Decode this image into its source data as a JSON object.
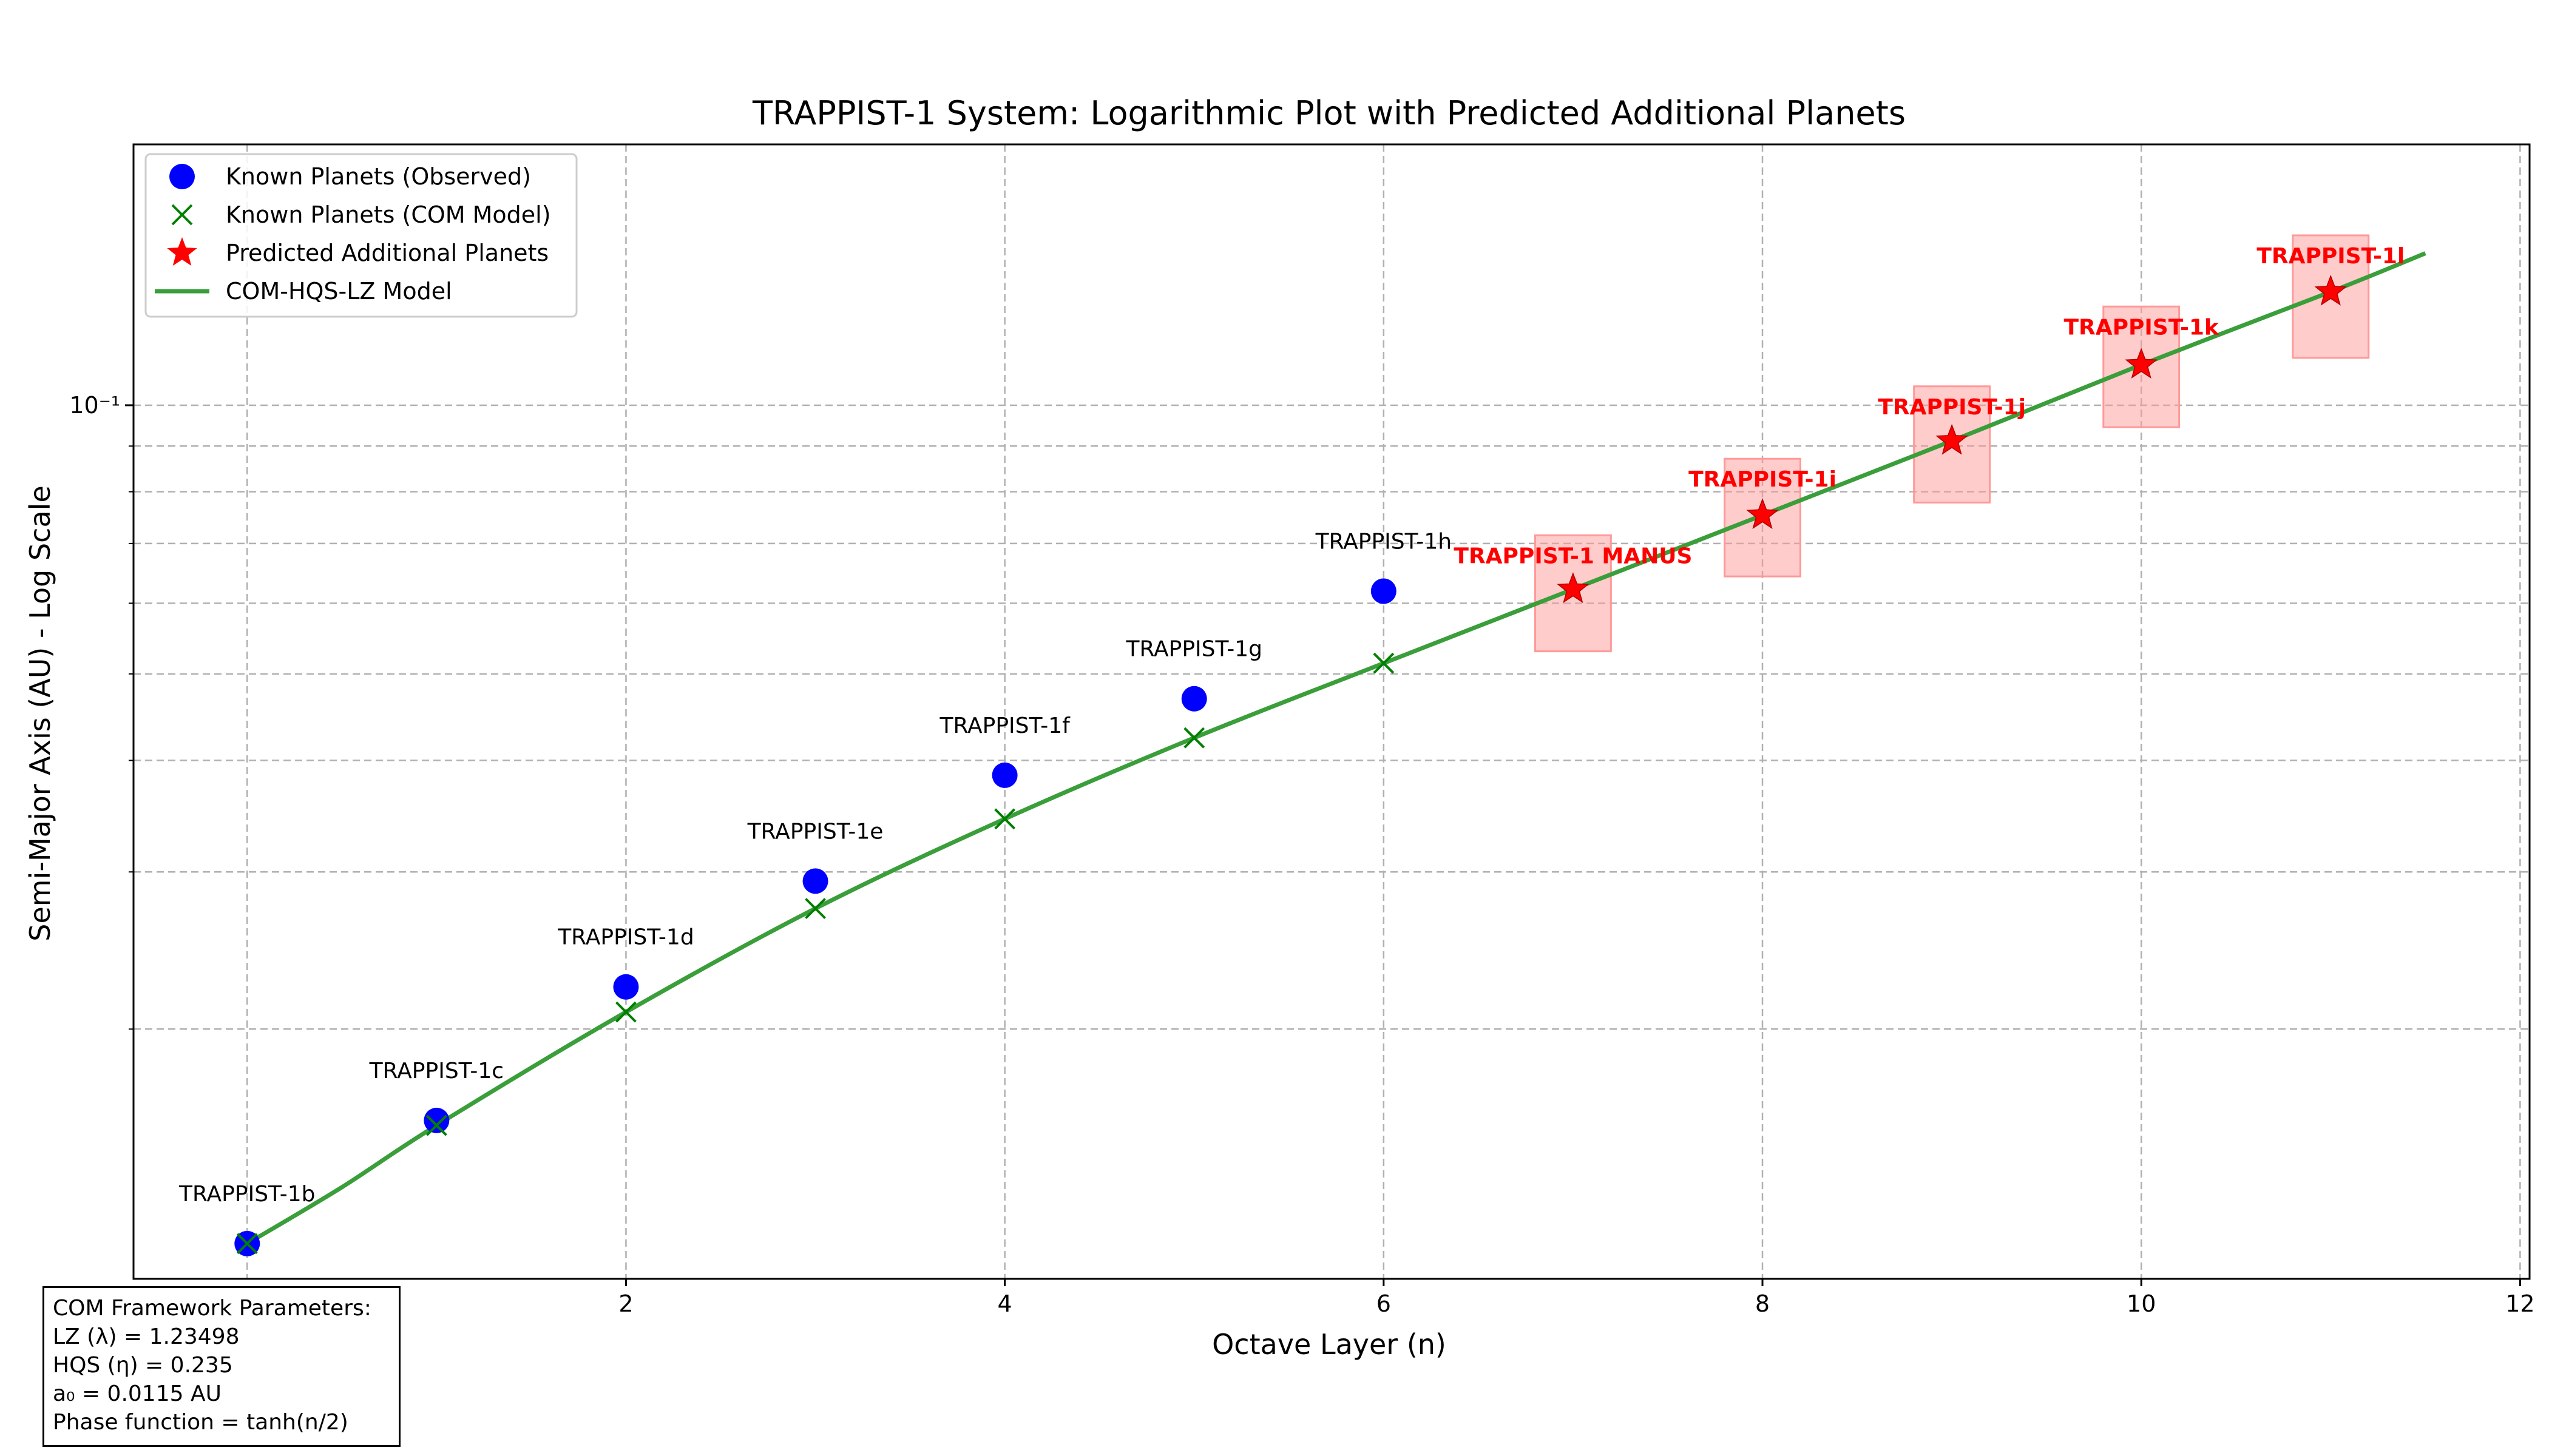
{
  "chart_data": {
    "type": "scatter",
    "title": "TRAPPIST-1 System: Logarithmic Plot with Predicted Additional Planets",
    "xlabel": "Octave Layer (n)",
    "ylabel": "Semi-Major Axis (AU) - Log Scale",
    "xscale": "linear",
    "yscale": "log",
    "xlim": [
      -0.6,
      12.05
    ],
    "ylim": [
      0.0105,
      0.196
    ],
    "xticks": [
      2,
      4,
      6,
      8,
      10,
      12
    ],
    "xtick_labels": [
      "2",
      "4",
      "6",
      "8",
      "10",
      "12"
    ],
    "yticks_major": [
      0.1
    ],
    "ytick_labels": [
      "10⁻¹"
    ],
    "yticks_minor": [
      0.02,
      0.03,
      0.04,
      0.05,
      0.06,
      0.07,
      0.08,
      0.09
    ],
    "grid": true,
    "legend_position": "upper-left",
    "colors": {
      "observed": "#0000ff",
      "com_model": "#008000",
      "predicted": "#ff0000",
      "model_line": "#3a9e3a",
      "uncertainty_box": "#ff9999"
    },
    "legend": [
      {
        "label": "Known Planets (Observed)",
        "marker": "circle"
      },
      {
        "label": "Known Planets (COM Model)",
        "marker": "x"
      },
      {
        "label": "Predicted Additional Planets",
        "marker": "star"
      },
      {
        "label": "COM-HQS-LZ Model",
        "marker": "line"
      }
    ],
    "series": [
      {
        "name": "Known Planets (Observed)",
        "marker": "circle",
        "points": [
          {
            "x": 0,
            "y": 0.0115,
            "label": "TRAPPIST-1b"
          },
          {
            "x": 1,
            "y": 0.0158,
            "label": "TRAPPIST-1c"
          },
          {
            "x": 2,
            "y": 0.0223,
            "label": "TRAPPIST-1d"
          },
          {
            "x": 3,
            "y": 0.0293,
            "label": "TRAPPIST-1e"
          },
          {
            "x": 4,
            "y": 0.0385,
            "label": "TRAPPIST-1f"
          },
          {
            "x": 5,
            "y": 0.0469,
            "label": "TRAPPIST-1g"
          },
          {
            "x": 6,
            "y": 0.0619,
            "label": "TRAPPIST-1h"
          }
        ]
      },
      {
        "name": "Known Planets (COM Model)",
        "marker": "x",
        "points": [
          {
            "x": 0,
            "y": 0.0115
          },
          {
            "x": 1,
            "y": 0.0156
          },
          {
            "x": 2,
            "y": 0.0209
          },
          {
            "x": 3,
            "y": 0.0273
          },
          {
            "x": 4,
            "y": 0.0344
          },
          {
            "x": 5,
            "y": 0.0424
          },
          {
            "x": 6,
            "y": 0.0514
          }
        ]
      },
      {
        "name": "Predicted Additional Planets",
        "marker": "star",
        "points": [
          {
            "x": 7,
            "y": 0.0622,
            "label": "TRAPPIST-1 MANUS",
            "low": 0.053,
            "high": 0.0715
          },
          {
            "x": 8,
            "y": 0.0753,
            "label": "TRAPPIST-1i",
            "low": 0.0643,
            "high": 0.0871
          },
          {
            "x": 9,
            "y": 0.0912,
            "label": "TRAPPIST-1j",
            "low": 0.0778,
            "high": 0.105
          },
          {
            "x": 10,
            "y": 0.111,
            "label": "TRAPPIST-1k",
            "low": 0.0945,
            "high": 0.129
          },
          {
            "x": 11,
            "y": 0.134,
            "label": "TRAPPIST-1l",
            "low": 0.113,
            "high": 0.155
          }
        ]
      },
      {
        "name": "COM-HQS-LZ Model",
        "marker": "line",
        "points": [
          {
            "x": 0,
            "y": 0.0115
          },
          {
            "x": 0.5,
            "y": 0.0133
          },
          {
            "x": 1,
            "y": 0.0156
          },
          {
            "x": 2,
            "y": 0.0209
          },
          {
            "x": 3,
            "y": 0.0273
          },
          {
            "x": 4,
            "y": 0.0344
          },
          {
            "x": 5,
            "y": 0.0424
          },
          {
            "x": 6,
            "y": 0.0514
          },
          {
            "x": 7,
            "y": 0.0622
          },
          {
            "x": 8,
            "y": 0.0753
          },
          {
            "x": 9,
            "y": 0.0912
          },
          {
            "x": 10,
            "y": 0.111
          },
          {
            "x": 11,
            "y": 0.134
          },
          {
            "x": 11.5,
            "y": 0.148
          }
        ]
      }
    ]
  },
  "params_box": {
    "lines": [
      "COM Framework Parameters:",
      "LZ (λ) = 1.23498",
      "HQS (η) = 0.235",
      "a₀ = 0.0115 AU",
      "Phase function = tanh(n/2)"
    ]
  }
}
